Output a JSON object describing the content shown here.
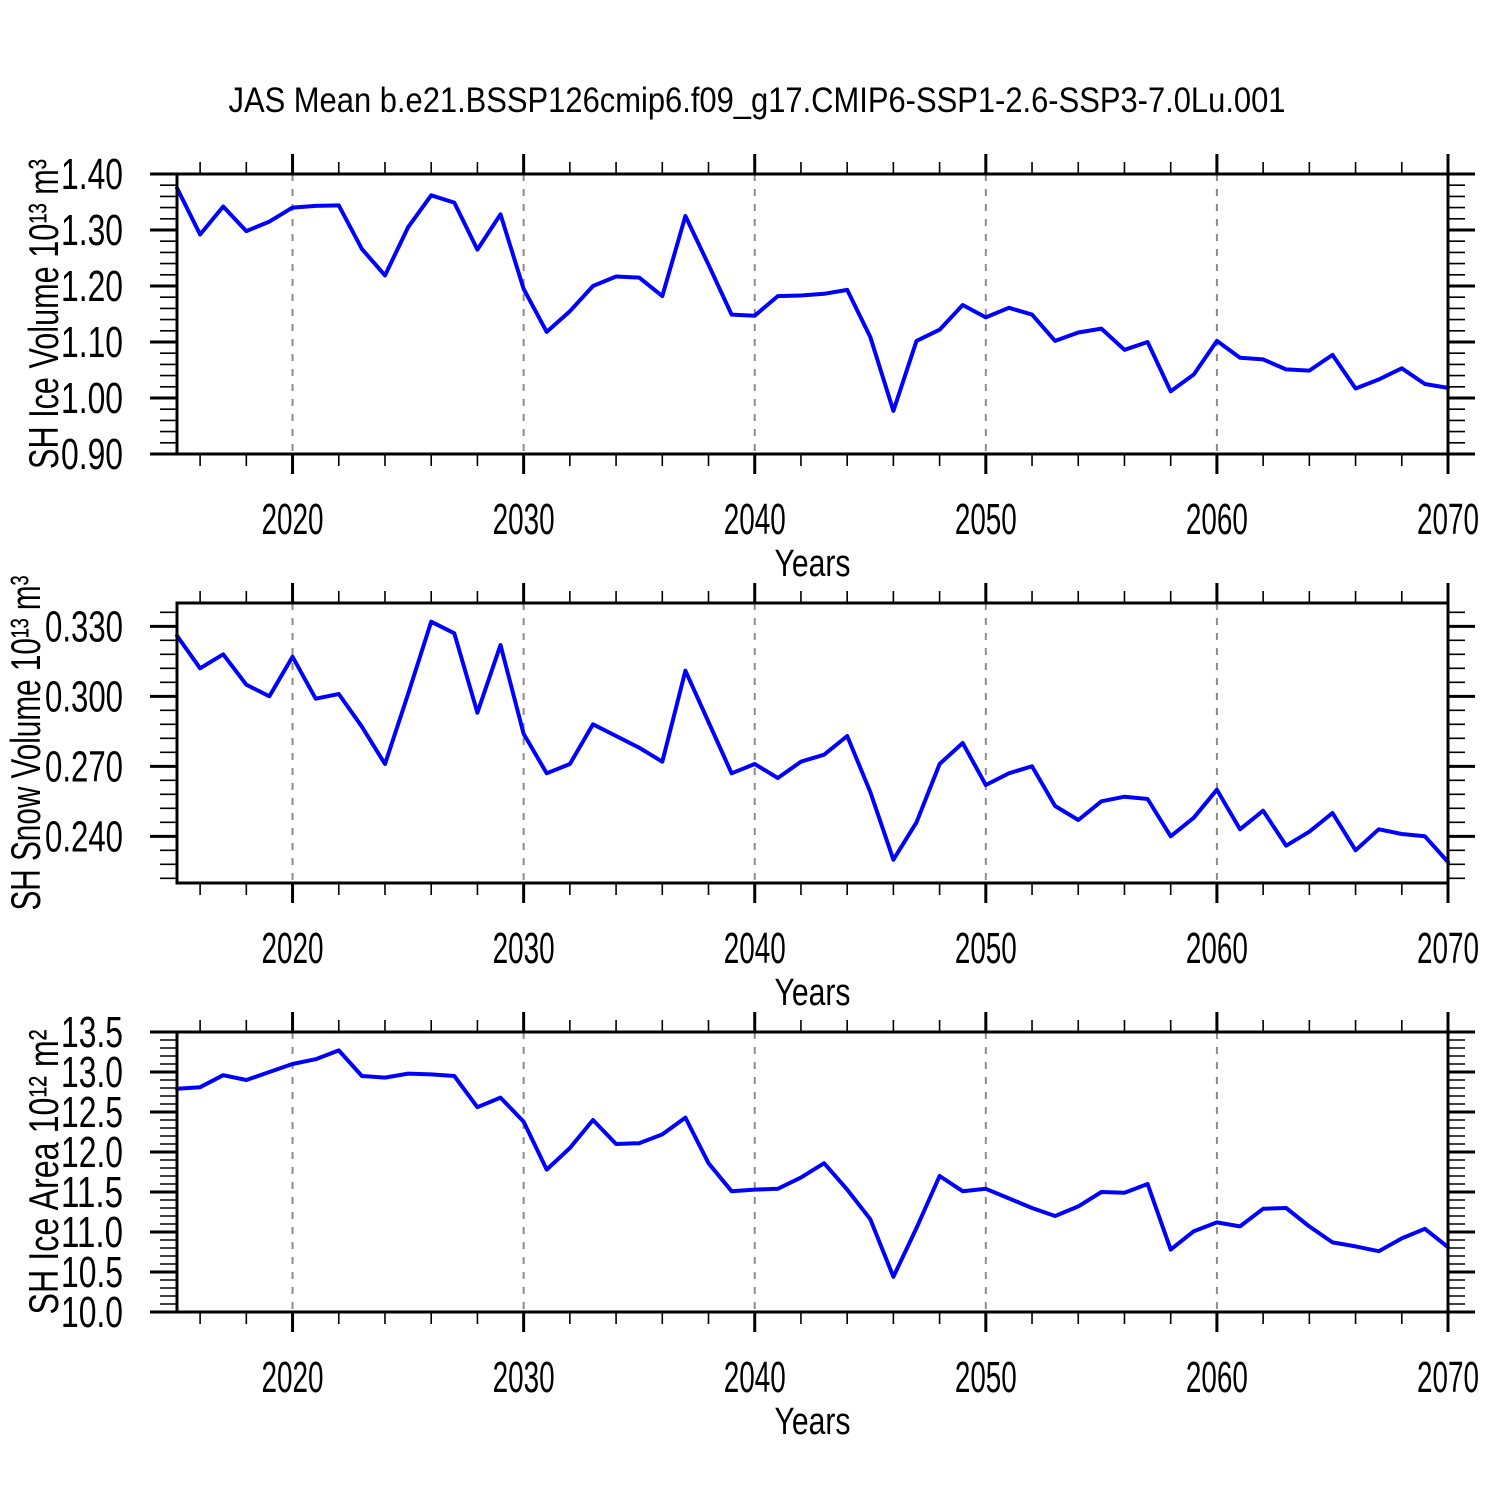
{
  "title": "JAS Mean b.e21.BSSP126cmip6.f09_g17.CMIP6-SSP1-2.6-SSP3-7.0Lu.001",
  "colors": {
    "line": "#0000ff",
    "grid": "#8c8c8c",
    "axis": "#000000",
    "background": "#ffffff"
  },
  "chart_data": [
    {
      "type": "line",
      "ylabel": "SH Ice Volume 10¹³ m³",
      "xlabel": "Years",
      "legend": "none",
      "grid": "dashed vertical lines at decade years",
      "xlim": [
        2015,
        2070
      ],
      "ylim": [
        0.9,
        1.4
      ],
      "x_major_ticks": [
        2020,
        2030,
        2040,
        2050,
        2060,
        2070
      ],
      "x_tick_labels": [
        "2020",
        "2030",
        "2040",
        "2050",
        "2060",
        "2070"
      ],
      "x_minor_step": 2,
      "y_ticks": [
        0.9,
        1.0,
        1.1,
        1.2,
        1.3,
        1.4
      ],
      "y_tick_labels": [
        "0.90",
        "1.00",
        "1.10",
        "1.20",
        "1.30",
        "1.40"
      ],
      "y_minor_step": 0.02,
      "x": [
        2015,
        2016,
        2017,
        2018,
        2019,
        2020,
        2021,
        2022,
        2023,
        2024,
        2025,
        2026,
        2027,
        2028,
        2029,
        2030,
        2031,
        2032,
        2033,
        2034,
        2035,
        2036,
        2037,
        2038,
        2039,
        2040,
        2041,
        2042,
        2043,
        2044,
        2045,
        2046,
        2047,
        2048,
        2049,
        2050,
        2051,
        2052,
        2053,
        2054,
        2055,
        2056,
        2057,
        2058,
        2059,
        2060,
        2061,
        2062,
        2063,
        2064,
        2065,
        2066,
        2067,
        2068,
        2069,
        2070
      ],
      "values": [
        1.375,
        1.292,
        1.342,
        1.298,
        1.315,
        1.34,
        1.343,
        1.344,
        1.266,
        1.219,
        1.305,
        1.362,
        1.349,
        1.265,
        1.328,
        1.195,
        1.118,
        1.155,
        1.2,
        1.217,
        1.215,
        1.182,
        1.325,
        1.238,
        1.149,
        1.147,
        1.182,
        1.183,
        1.186,
        1.193,
        1.109,
        0.977,
        1.102,
        1.122,
        1.166,
        1.144,
        1.161,
        1.149,
        1.102,
        1.117,
        1.124,
        1.086,
        1.1,
        1.012,
        1.042,
        1.102,
        1.072,
        1.069,
        1.051,
        1.049,
        1.077,
        1.017,
        1.033,
        1.053,
        1.025,
        1.018
      ]
    },
    {
      "type": "line",
      "ylabel": "SH Snow Volume 10¹³ m³",
      "xlabel": "Years",
      "legend": "none",
      "grid": "dashed vertical lines at decade years",
      "xlim": [
        2015,
        2070
      ],
      "ylim": [
        0.22,
        0.34
      ],
      "x_major_ticks": [
        2020,
        2030,
        2040,
        2050,
        2060,
        2070
      ],
      "x_tick_labels": [
        "2020",
        "2030",
        "2040",
        "2050",
        "2060",
        "2070"
      ],
      "x_minor_step": 2,
      "y_ticks": [
        0.24,
        0.27,
        0.3,
        0.33
      ],
      "y_tick_labels": [
        "0.240",
        "0.270",
        "0.300",
        "0.330"
      ],
      "y_minor_step": 0.006,
      "x": [
        2015,
        2016,
        2017,
        2018,
        2019,
        2020,
        2021,
        2022,
        2023,
        2024,
        2025,
        2026,
        2027,
        2028,
        2029,
        2030,
        2031,
        2032,
        2033,
        2034,
        2035,
        2036,
        2037,
        2038,
        2039,
        2040,
        2041,
        2042,
        2043,
        2044,
        2045,
        2046,
        2047,
        2048,
        2049,
        2050,
        2051,
        2052,
        2053,
        2054,
        2055,
        2056,
        2057,
        2058,
        2059,
        2060,
        2061,
        2062,
        2063,
        2064,
        2065,
        2066,
        2067,
        2068,
        2069,
        2070
      ],
      "values": [
        0.326,
        0.312,
        0.318,
        0.305,
        0.3,
        0.317,
        0.299,
        0.301,
        0.287,
        0.271,
        0.301,
        0.332,
        0.327,
        0.293,
        0.322,
        0.284,
        0.267,
        0.271,
        0.288,
        0.283,
        0.278,
        0.272,
        0.311,
        0.289,
        0.267,
        0.271,
        0.265,
        0.272,
        0.275,
        0.283,
        0.259,
        0.23,
        0.246,
        0.271,
        0.28,
        0.262,
        0.267,
        0.27,
        0.253,
        0.247,
        0.255,
        0.257,
        0.256,
        0.24,
        0.248,
        0.26,
        0.243,
        0.251,
        0.236,
        0.242,
        0.25,
        0.234,
        0.243,
        0.241,
        0.24,
        0.229
      ]
    },
    {
      "type": "line",
      "ylabel": "SH Ice Area 10¹² m²",
      "xlabel": "Years",
      "legend": "none",
      "grid": "dashed vertical lines at decade years",
      "xlim": [
        2015,
        2070
      ],
      "ylim": [
        10.0,
        13.5
      ],
      "x_major_ticks": [
        2020,
        2030,
        2040,
        2050,
        2060,
        2070
      ],
      "x_tick_labels": [
        "2020",
        "2030",
        "2040",
        "2050",
        "2060",
        "2070"
      ],
      "x_minor_step": 2,
      "y_ticks": [
        10.0,
        10.5,
        11.0,
        11.5,
        12.0,
        12.5,
        13.0,
        13.5
      ],
      "y_tick_labels": [
        "10.0",
        "10.5",
        "11.0",
        "11.5",
        "12.0",
        "12.5",
        "13.0",
        "13.5"
      ],
      "y_minor_step": 0.1,
      "x": [
        2015,
        2016,
        2017,
        2018,
        2019,
        2020,
        2021,
        2022,
        2023,
        2024,
        2025,
        2026,
        2027,
        2028,
        2029,
        2030,
        2031,
        2032,
        2033,
        2034,
        2035,
        2036,
        2037,
        2038,
        2039,
        2040,
        2041,
        2042,
        2043,
        2044,
        2045,
        2046,
        2047,
        2048,
        2049,
        2050,
        2051,
        2052,
        2053,
        2054,
        2055,
        2056,
        2057,
        2058,
        2059,
        2060,
        2061,
        2062,
        2063,
        2064,
        2065,
        2066,
        2067,
        2068,
        2069,
        2070
      ],
      "values": [
        12.79,
        12.81,
        12.96,
        12.9,
        13.0,
        13.1,
        13.16,
        13.27,
        12.95,
        12.93,
        12.98,
        12.97,
        12.95,
        12.56,
        12.68,
        12.38,
        11.78,
        12.05,
        12.4,
        12.1,
        12.11,
        12.22,
        12.43,
        11.86,
        11.51,
        11.53,
        11.54,
        11.68,
        11.86,
        11.53,
        11.16,
        10.44,
        11.05,
        11.7,
        11.51,
        11.54,
        11.42,
        11.3,
        11.2,
        11.32,
        11.5,
        11.49,
        11.6,
        10.78,
        11.01,
        11.12,
        11.07,
        11.29,
        11.3,
        11.07,
        10.87,
        10.82,
        10.76,
        10.92,
        11.04,
        10.81
      ]
    }
  ]
}
